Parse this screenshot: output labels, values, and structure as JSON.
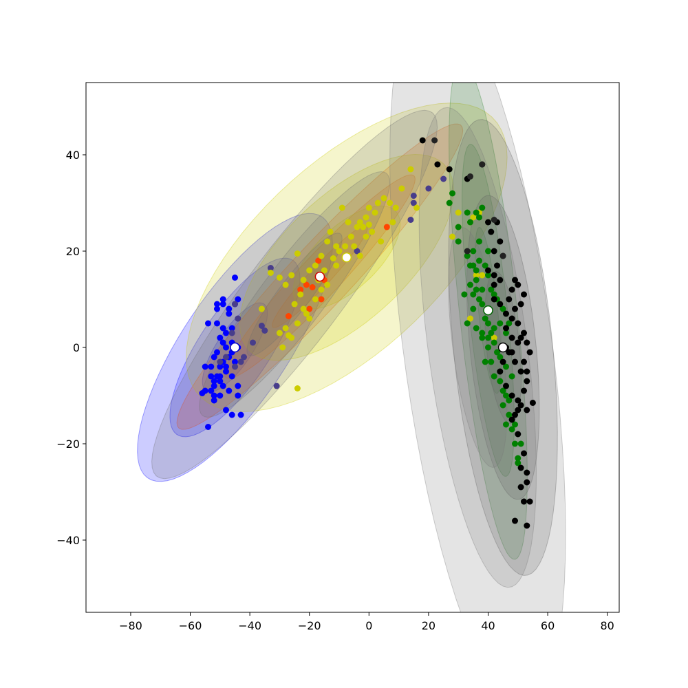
{
  "chart_data": {
    "type": "scatter",
    "title": "",
    "xlabel": "",
    "ylabel": "",
    "xlim": [
      -95,
      84
    ],
    "ylim": [
      -55,
      55
    ],
    "grid": false,
    "x_ticks": [
      -80,
      -60,
      -40,
      -20,
      0,
      20,
      40,
      60,
      80
    ],
    "x_tick_labels": [
      "−80",
      "−60",
      "−40",
      "−20",
      "0",
      "20",
      "40",
      "60",
      "80"
    ],
    "y_ticks": [
      -40,
      -20,
      0,
      20,
      40
    ],
    "y_tick_labels": [
      "−40",
      "−20",
      "0",
      "20",
      "40"
    ],
    "components": [
      {
        "color": "#0000ff",
        "mean": [
          -45,
          0
        ],
        "sigma_major": 13.5,
        "sigma_minor": 4.8,
        "angle_deg": 39
      },
      {
        "color": "#ff4500",
        "mean": [
          -16.5,
          14.7
        ],
        "sigma_major": 19,
        "sigma_minor": 2.6,
        "angle_deg": 33
      },
      {
        "color": "#cccc00",
        "mean": [
          -7.5,
          18.7
        ],
        "sigma_major": 19.5,
        "sigma_minor": 7.5,
        "angle_deg": 25
      },
      {
        "color": "#707070",
        "mean": [
          -25,
          11
        ],
        "sigma_major": 20,
        "sigma_minor": 4.2,
        "angle_deg": 38
      },
      {
        "color": "#228b22",
        "mean": [
          40,
          7.7
        ],
        "sigma_major": 17.5,
        "sigma_minor": 3.2,
        "angle_deg": -80
      },
      {
        "color": "#555555",
        "mean": [
          45,
          0
        ],
        "sigma_major": 16,
        "sigma_minor": 5.5,
        "angle_deg": -80
      },
      {
        "color": "#777777",
        "mean": [
          36.5,
          0
        ],
        "sigma_major": 25.5,
        "sigma_minor": 8.2,
        "angle_deg": -77
      }
    ],
    "means": [
      [
        -45,
        0
      ],
      [
        -16.5,
        14.7
      ],
      [
        -7.5,
        18.7
      ],
      [
        40,
        7.7
      ],
      [
        45,
        0
      ]
    ],
    "series": [
      {
        "color": "#0000ff",
        "points": [
          [
            -54,
            -16.5
          ],
          [
            -48,
            -13
          ],
          [
            -46,
            -14
          ],
          [
            -43,
            -14
          ],
          [
            -50,
            -10
          ],
          [
            -52,
            -10
          ],
          [
            -55,
            -9
          ],
          [
            -52,
            -8
          ],
          [
            -49,
            -8
          ],
          [
            -44,
            -8
          ],
          [
            -47,
            -9
          ],
          [
            -44,
            -10
          ],
          [
            -50,
            -7
          ],
          [
            -53,
            -6
          ],
          [
            -51,
            -6
          ],
          [
            -48,
            -5
          ],
          [
            -46,
            -6
          ],
          [
            -53,
            -4
          ],
          [
            -50,
            -4
          ],
          [
            -52,
            -2
          ],
          [
            -49,
            -3
          ],
          [
            -47,
            -2
          ],
          [
            -51,
            -1
          ],
          [
            -48,
            0
          ],
          [
            -46,
            1
          ],
          [
            -50,
            2
          ],
          [
            -48,
            3
          ],
          [
            -51,
            5
          ],
          [
            -49,
            4
          ],
          [
            -46,
            4
          ],
          [
            -54,
            5
          ],
          [
            -51,
            8
          ],
          [
            -49,
            9
          ],
          [
            -47,
            8
          ],
          [
            -51,
            9
          ],
          [
            -49,
            10
          ],
          [
            -45,
            9
          ],
          [
            -44,
            10
          ],
          [
            -47,
            7
          ],
          [
            -45,
            14.5
          ],
          [
            -52,
            -11
          ],
          [
            -56,
            -9.5
          ],
          [
            -53,
            -9
          ],
          [
            -44,
            0
          ],
          [
            -45,
            -3
          ],
          [
            -48,
            -4
          ],
          [
            -50,
            -6
          ],
          [
            -52,
            -7
          ],
          [
            -46,
            -1
          ],
          [
            -55,
            -4
          ],
          [
            -49,
            1
          ]
        ]
      },
      {
        "color": "#483d8b",
        "points": [
          [
            -44,
            6
          ],
          [
            -45,
            9
          ],
          [
            -39,
            1
          ],
          [
            -35,
            3.5
          ],
          [
            -33,
            16.5
          ],
          [
            -31,
            -8
          ],
          [
            -36,
            4.5
          ],
          [
            -48,
            -2
          ],
          [
            -43,
            -3
          ],
          [
            -50,
            -3
          ],
          [
            -46,
            3
          ],
          [
            -45,
            -4
          ],
          [
            -42,
            -2
          ],
          [
            -4,
            20
          ],
          [
            15,
            31.5
          ],
          [
            15,
            30
          ],
          [
            14,
            26.5
          ],
          [
            20,
            33
          ],
          [
            25,
            35
          ]
        ]
      },
      {
        "color": "#ff4500",
        "points": [
          [
            -27,
            6.5
          ],
          [
            -19,
            12.5
          ],
          [
            -16,
            10
          ],
          [
            -18,
            10
          ],
          [
            -15,
            14
          ],
          [
            -21,
            13
          ],
          [
            -17,
            18
          ],
          [
            6,
            25
          ],
          [
            -23,
            12
          ],
          [
            -20,
            8
          ]
        ]
      },
      {
        "color": "#cccc00",
        "points": [
          [
            -36,
            8
          ],
          [
            -33,
            15.5
          ],
          [
            -30,
            14.5
          ],
          [
            -28,
            13
          ],
          [
            -26,
            15
          ],
          [
            -24,
            19.5
          ],
          [
            -22,
            14
          ],
          [
            -20,
            16
          ],
          [
            -18,
            17
          ],
          [
            -16,
            19
          ],
          [
            -14,
            22
          ],
          [
            -12,
            18.5
          ],
          [
            -10,
            20
          ],
          [
            -8,
            21
          ],
          [
            -6,
            23
          ],
          [
            -4,
            25
          ],
          [
            -3,
            26
          ],
          [
            -1,
            27
          ],
          [
            0,
            29
          ],
          [
            2,
            28
          ],
          [
            3,
            30
          ],
          [
            5,
            31
          ],
          [
            7,
            30
          ],
          [
            9,
            29
          ],
          [
            11,
            33
          ],
          [
            14,
            37
          ],
          [
            16,
            29
          ],
          [
            -30,
            3
          ],
          [
            -28,
            4
          ],
          [
            -26,
            2
          ],
          [
            -24,
            5
          ],
          [
            -22,
            8
          ],
          [
            -20,
            6
          ],
          [
            -18,
            10
          ],
          [
            -16,
            12
          ],
          [
            -14,
            13
          ],
          [
            -13,
            24
          ],
          [
            -11,
            21
          ],
          [
            -9,
            29
          ],
          [
            -7,
            26
          ],
          [
            -5,
            21
          ],
          [
            -3,
            19
          ],
          [
            -1,
            23
          ],
          [
            1,
            24
          ],
          [
            4,
            22
          ],
          [
            8,
            26
          ],
          [
            -24,
            -8.5
          ],
          [
            -29,
            0
          ],
          [
            -27,
            2.5
          ],
          [
            -25,
            9
          ],
          [
            -23,
            11
          ],
          [
            -21,
            7
          ],
          [
            -17,
            14
          ],
          [
            -15,
            16
          ],
          [
            -11,
            17
          ],
          [
            -7,
            19
          ],
          [
            -2,
            25
          ],
          [
            0,
            25.5
          ],
          [
            30,
            28
          ],
          [
            35,
            27
          ],
          [
            34,
            26
          ],
          [
            37,
            28
          ],
          [
            30,
            25
          ],
          [
            28,
            23
          ],
          [
            36,
            15
          ],
          [
            34,
            6
          ],
          [
            38,
            15
          ],
          [
            42,
            2
          ]
        ]
      },
      {
        "color": "#008000",
        "points": [
          [
            27,
            30
          ],
          [
            28,
            32
          ],
          [
            30,
            25
          ],
          [
            33,
            28
          ],
          [
            34,
            26
          ],
          [
            36,
            28
          ],
          [
            38,
            29
          ],
          [
            37,
            27
          ],
          [
            30,
            22
          ],
          [
            33,
            19
          ],
          [
            35,
            20
          ],
          [
            37,
            18
          ],
          [
            39,
            17
          ],
          [
            40,
            15
          ],
          [
            36,
            14
          ],
          [
            34,
            13
          ],
          [
            32,
            11
          ],
          [
            35,
            11
          ],
          [
            37,
            10
          ],
          [
            38,
            9
          ],
          [
            39,
            6
          ],
          [
            40,
            5
          ],
          [
            41,
            3
          ],
          [
            38,
            2
          ],
          [
            40,
            0
          ],
          [
            42,
            1
          ],
          [
            43,
            -1
          ],
          [
            41,
            -3
          ],
          [
            39,
            -3
          ],
          [
            42,
            -6
          ],
          [
            44,
            -7
          ],
          [
            45,
            -9
          ],
          [
            46,
            -10
          ],
          [
            47,
            -14
          ],
          [
            46,
            -16
          ],
          [
            48,
            -17
          ],
          [
            49,
            -20
          ],
          [
            50,
            -23
          ],
          [
            50,
            -24
          ],
          [
            51,
            -20
          ],
          [
            35,
            8
          ],
          [
            33,
            5
          ],
          [
            36,
            4
          ],
          [
            38,
            3
          ],
          [
            40,
            2
          ],
          [
            42,
            4
          ],
          [
            44,
            5
          ],
          [
            46,
            3
          ],
          [
            44,
            -2
          ],
          [
            46,
            -4
          ],
          [
            48,
            -6
          ],
          [
            47,
            -11
          ],
          [
            45,
            -12
          ],
          [
            49,
            -16
          ],
          [
            37,
            22
          ],
          [
            35,
            17
          ],
          [
            41,
            12
          ],
          [
            43,
            10
          ],
          [
            45,
            8
          ],
          [
            36,
            12
          ],
          [
            38,
            12
          ],
          [
            34,
            17
          ],
          [
            36,
            16
          ],
          [
            40,
            20
          ],
          [
            42,
            11
          ],
          [
            47,
            5
          ]
        ]
      },
      {
        "color": "#000000",
        "points": [
          [
            45,
            19
          ],
          [
            49,
            14
          ],
          [
            52,
            11
          ],
          [
            51,
            9
          ],
          [
            49,
            8
          ],
          [
            48,
            6
          ],
          [
            46,
            4
          ],
          [
            50,
            5
          ],
          [
            52,
            3
          ],
          [
            53,
            1
          ],
          [
            54,
            -1
          ],
          [
            52,
            -3
          ],
          [
            51,
            -5
          ],
          [
            53,
            -7
          ],
          [
            52,
            -9
          ],
          [
            50,
            -11
          ],
          [
            51,
            -12
          ],
          [
            53,
            -13
          ],
          [
            49,
            -14
          ],
          [
            48,
            -15
          ],
          [
            50,
            -18
          ],
          [
            52,
            -22
          ],
          [
            53,
            -26
          ],
          [
            53,
            -28
          ],
          [
            54,
            -32
          ],
          [
            52,
            -32
          ],
          [
            51,
            -29
          ],
          [
            49,
            -36
          ],
          [
            53,
            -37
          ],
          [
            55,
            -11.5
          ],
          [
            51,
            -25
          ],
          [
            50,
            -13
          ],
          [
            48,
            -10
          ],
          [
            46,
            -8
          ],
          [
            44,
            -5
          ],
          [
            45,
            -3
          ],
          [
            47,
            -1
          ],
          [
            48,
            2
          ],
          [
            50,
            1
          ],
          [
            46,
            7
          ],
          [
            47,
            10
          ],
          [
            48,
            12
          ],
          [
            50,
            13
          ],
          [
            44,
            14
          ],
          [
            42,
            13
          ],
          [
            42,
            15
          ],
          [
            40,
            16
          ],
          [
            43,
            17
          ],
          [
            44,
            22
          ],
          [
            42,
            20
          ],
          [
            41,
            24
          ],
          [
            40,
            26
          ],
          [
            43,
            26
          ],
          [
            38,
            38
          ],
          [
            33,
            35
          ],
          [
            27,
            37
          ],
          [
            23,
            38
          ],
          [
            18,
            43
          ],
          [
            42,
            10
          ],
          [
            44,
            9
          ],
          [
            46,
            0
          ],
          [
            49,
            -3
          ],
          [
            51,
            2
          ],
          [
            53,
            -5
          ],
          [
            48,
            -1
          ]
        ]
      },
      {
        "color": "#222222",
        "points": [
          [
            34,
            35.5
          ],
          [
            38,
            38
          ],
          [
            42,
            26.5
          ],
          [
            45,
            19
          ],
          [
            33,
            20
          ],
          [
            22,
            43
          ]
        ]
      }
    ]
  }
}
